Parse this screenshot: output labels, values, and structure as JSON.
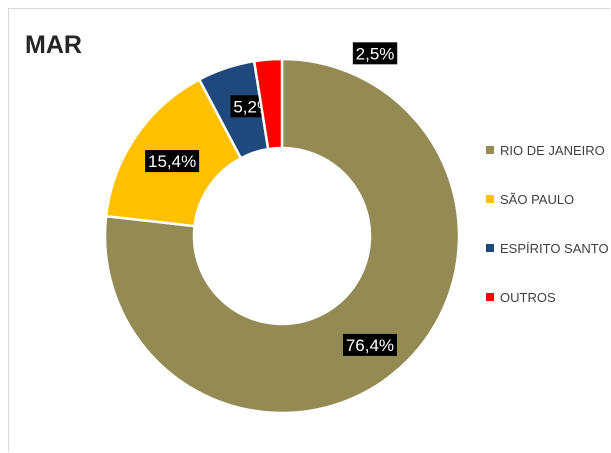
{
  "chart_data": {
    "type": "pie",
    "variant": "donut",
    "title": "MAR",
    "legend_position": "right",
    "slices": [
      {
        "name": "RIO DE JANEIRO",
        "value": 76.4,
        "label": "76,4%",
        "color": "#948A54"
      },
      {
        "name": "SÃO PAULO",
        "value": 15.4,
        "label": "15,4%",
        "color": "#FFC000"
      },
      {
        "name": "ESPÍRITO SANTO",
        "value": 5.2,
        "label": "5,2%",
        "color": "#1F497D"
      },
      {
        "name": "OUTROS",
        "value": 2.5,
        "label": "2,5%",
        "color": "#FF0000"
      }
    ]
  }
}
